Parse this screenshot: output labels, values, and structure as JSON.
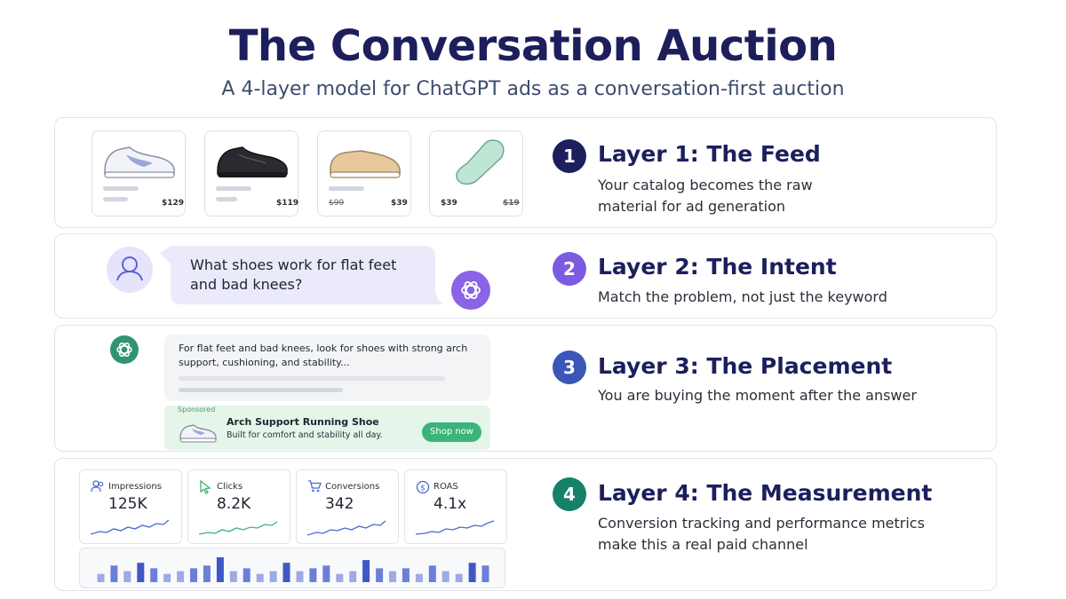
{
  "header": {
    "title": "The Conversation Auction",
    "subtitle": "A 4-layer model for ChatGPT ads as a conversation-first auction"
  },
  "colors": {
    "navy": "#1c1f5c",
    "purple": "#7b5be0",
    "blue": "#3a56b8",
    "green": "#168069"
  },
  "layers": [
    {
      "number": "1",
      "title": "Layer 1: The Feed",
      "description": "Your catalog becomes the raw material for ad generation",
      "products": [
        {
          "icon": "white-sneaker-icon",
          "price": "$129"
        },
        {
          "icon": "black-sneaker-icon",
          "price": "$119"
        },
        {
          "icon": "tan-slip-on-shoe-icon",
          "old_price": "$99",
          "price": "$39"
        },
        {
          "icon": "insole-icon",
          "old_price": "$39",
          "price": "$19"
        }
      ]
    },
    {
      "number": "2",
      "title": "Layer 2: The Intent",
      "description": "Match the problem, not just the keyword",
      "user_query": "What shoes work for flat feet and bad knees?"
    },
    {
      "number": "3",
      "title": "Layer 3: The Placement",
      "description": "You are buying the moment after the answer",
      "answer_text": "For flat feet and bad knees, look for shoes with strong arch support, cushioning, and stability...",
      "ad": {
        "sponsored_label": "Sponsored",
        "title": "Arch Support Running Shoe",
        "subtitle": "Built for comfort and stability all day.",
        "cta": "Shop now"
      }
    },
    {
      "number": "4",
      "title": "Layer 4: The Measurement",
      "description": "Conversion tracking and performance metrics make this a real paid channel",
      "metrics": [
        {
          "icon": "users-icon",
          "label": "Impressions",
          "value": "125K",
          "color": "#4a6ad0"
        },
        {
          "icon": "cursor-icon",
          "label": "Clicks",
          "value": "8.2K",
          "color": "#3bb37a"
        },
        {
          "icon": "cart-icon",
          "label": "Conversions",
          "value": "342",
          "color": "#4a6ad0"
        },
        {
          "icon": "dollar-icon",
          "label": "ROAS",
          "value": "4.1x",
          "color": "#4a6ad0"
        }
      ],
      "bar_values": [
        3,
        6,
        4,
        7,
        5,
        3,
        4,
        5,
        6,
        9,
        4,
        5,
        3,
        4,
        7,
        4,
        5,
        6,
        3,
        4,
        8,
        5,
        4,
        5,
        3,
        6,
        4,
        3,
        7,
        6
      ]
    }
  ]
}
